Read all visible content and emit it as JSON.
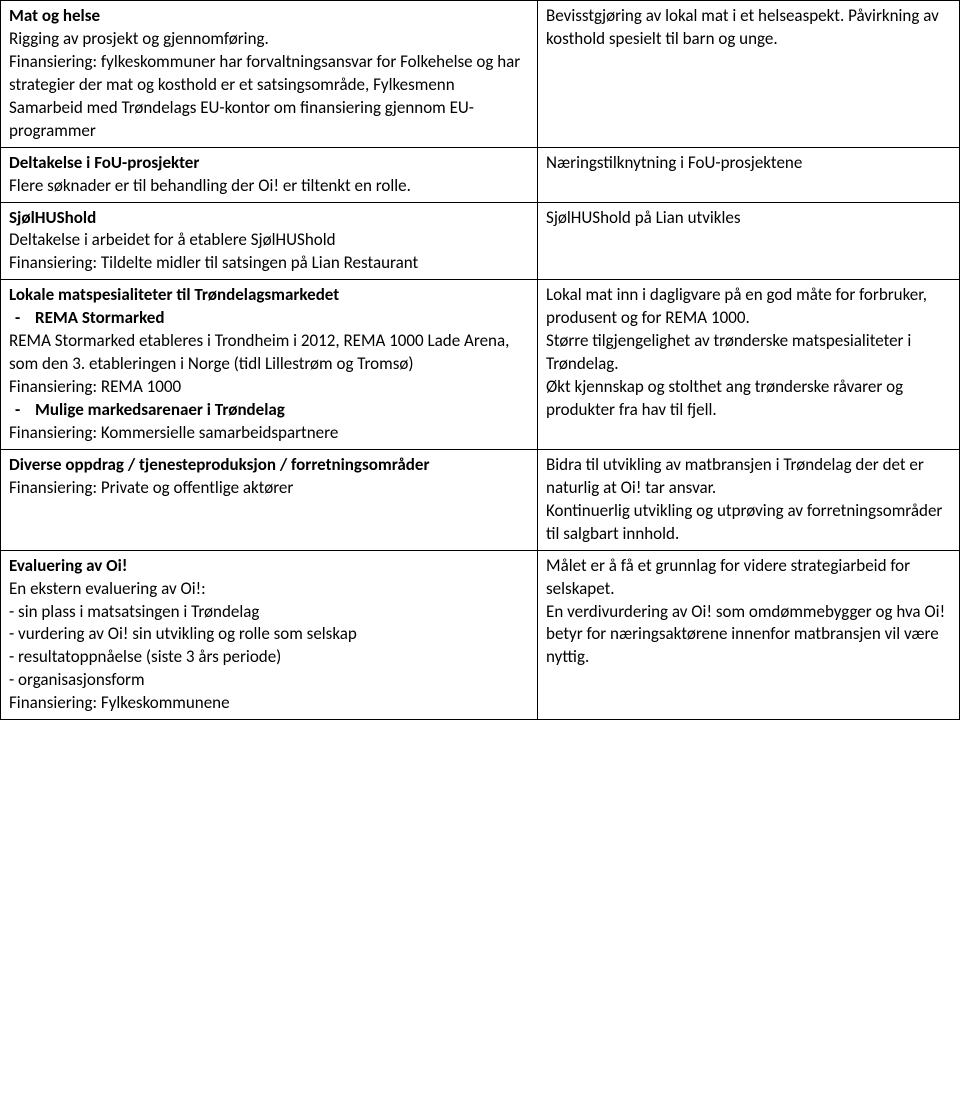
{
  "rows": [
    {
      "left": [
        {
          "bold": true,
          "text": "Mat og helse"
        },
        {
          "text": "Rigging av prosjekt og gjennomføring."
        },
        {
          "text": ""
        },
        {
          "text": "Finansiering: fylkeskommuner har forvaltningsansvar for Folkehelse og har strategier der mat og kosthold er et satsingsområde, Fylkesmenn"
        },
        {
          "text": "Samarbeid med Trøndelags EU-kontor om finansiering gjennom EU-programmer"
        }
      ],
      "right": [
        {
          "text": "Bevisstgjøring av lokal mat i et helseaspekt. Påvirkning av kosthold spesielt til barn og unge."
        }
      ]
    },
    {
      "left": [
        {
          "bold": true,
          "text": "Deltakelse i FoU-prosjekter"
        },
        {
          "text": "Flere søknader er til behandling der Oi! er tiltenkt en rolle."
        }
      ],
      "right": [
        {
          "text": "Næringstilknytning i FoU-prosjektene"
        }
      ]
    },
    {
      "left": [
        {
          "bold": true,
          "text": "SjølHUShold"
        },
        {
          "text": "Deltakelse i arbeidet for å etablere SjølHUShold"
        },
        {
          "text": "Finansiering: Tildelte midler til satsingen på Lian Restaurant"
        }
      ],
      "right": [
        {
          "text": "SjølHUShold på Lian utvikles"
        }
      ]
    },
    {
      "left": [
        {
          "bold": true,
          "text": "Lokale matspesialiteter til Trøndelagsmarkedet"
        },
        {
          "bold": true,
          "list": true,
          "text": "REMA Stormarked"
        },
        {
          "text": "REMA Stormarked etableres i Trondheim i 2012, REMA 1000 Lade Arena, som den 3. etableringen i Norge (tidl Lillestrøm og Tromsø)"
        },
        {
          "text": "Finansiering: REMA 1000"
        },
        {
          "bold": true,
          "list": true,
          "text": "Mulige markedsarenaer i Trøndelag"
        },
        {
          "text": ""
        },
        {
          "text": "Finansiering: Kommersielle samarbeidspartnere"
        }
      ],
      "right": [
        {
          "text": "Lokal mat inn i dagligvare på en god måte for forbruker, produsent og for REMA 1000."
        },
        {
          "text": ""
        },
        {
          "text": "Større tilgjengelighet av trønderske matspesialiteter i Trøndelag."
        },
        {
          "text": ""
        },
        {
          "text": "Økt kjennskap og stolthet ang trønderske råvarer og produkter fra hav til fjell."
        }
      ]
    },
    {
      "left": [
        {
          "bold": true,
          "text": "Diverse oppdrag / tjenesteproduksjon / forretningsområder"
        },
        {
          "text": ""
        },
        {
          "text": "Finansiering: Private og offentlige aktører"
        }
      ],
      "right": [
        {
          "text": "Bidra til utvikling av matbransjen i Trøndelag der det er naturlig at Oi! tar ansvar."
        },
        {
          "text": "Kontinuerlig utvikling og utprøving av forretningsområder til salgbart innhold."
        }
      ]
    },
    {
      "left": [
        {
          "bold": true,
          "text": "Evaluering av Oi!"
        },
        {
          "text": "En ekstern evaluering av Oi!:"
        },
        {
          "text": "- sin plass i matsatsingen i Trøndelag"
        },
        {
          "text": "- vurdering av Oi! sin utvikling og rolle som selskap"
        },
        {
          "text": "- resultatoppnåelse (siste 3 års periode)"
        },
        {
          "text": "- organisasjonsform"
        },
        {
          "text": ""
        },
        {
          "text": "Finansiering: Fylkeskommunene"
        }
      ],
      "right": [
        {
          "text": "Målet er å få et grunnlag for videre strategiarbeid for selskapet."
        },
        {
          "text": ""
        },
        {
          "text": "En verdivurdering av Oi! som omdømmebygger og hva Oi! betyr for næringsaktørene innenfor matbransjen vil være nyttig."
        }
      ]
    }
  ]
}
